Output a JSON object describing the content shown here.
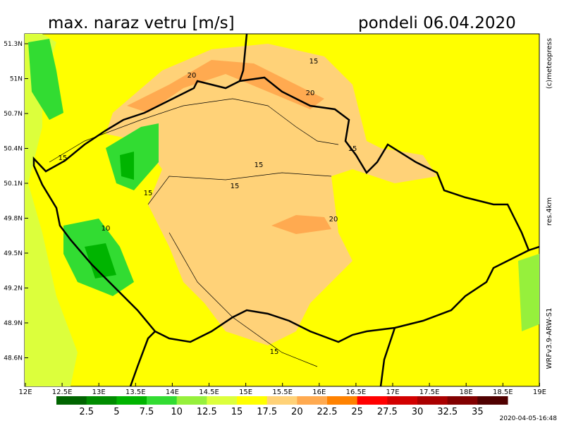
{
  "header": {
    "title": "max. naraz vetru [m/s]",
    "date": "pondeli 06.04.2020"
  },
  "side_labels": {
    "copyright": "(c)meteopress",
    "resolution": "res.4km",
    "model": "WRFv3.9-ARW-S1"
  },
  "map": {
    "lon_ticks": [
      "12E",
      "12.5E",
      "13E",
      "13.5E",
      "14E",
      "14.5E",
      "15E",
      "15.5E",
      "16E",
      "16.5E",
      "17E",
      "17.5E",
      "18E",
      "18.5E",
      "19E"
    ],
    "lat_ticks": [
      "51.3N",
      "51N",
      "50.7N",
      "50.4N",
      "50.1N",
      "49.8N",
      "49.5N",
      "49.2N",
      "48.9N",
      "48.6N"
    ],
    "contour_labels": [
      "20",
      "15",
      "20",
      "15",
      "15",
      "15",
      "15",
      "15",
      "20",
      "10",
      "15"
    ]
  },
  "legend": {
    "levels": [
      2.5,
      5,
      7.5,
      10,
      12.5,
      15,
      17.5,
      20,
      22.5,
      25,
      27.5,
      30,
      32.5,
      35
    ],
    "colors": [
      "#006400",
      "#008c00",
      "#00b400",
      "#32dc32",
      "#96f03c",
      "#dcff3c",
      "#ffff00",
      "#ffd278",
      "#ffaa50",
      "#ff8200",
      "#ff0000",
      "#d20000",
      "#aa0000",
      "#820000",
      "#500000"
    ]
  },
  "timestamp": "2020-04-05-16:48"
}
